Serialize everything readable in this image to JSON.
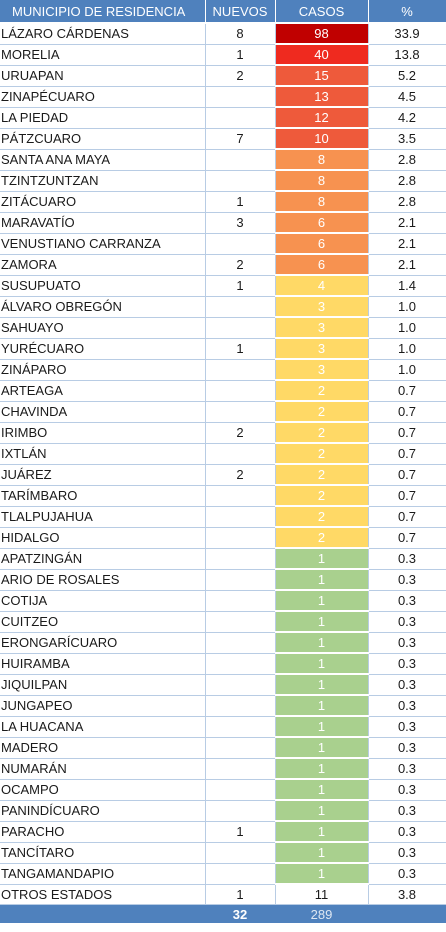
{
  "headers": {
    "municipio": "MUNICIPIO DE RESIDENCIA",
    "nuevos": "NUEVOS",
    "casos": "CASOS",
    "pct": "%"
  },
  "colors": {
    "header": "#4f81bd",
    "tier_98": "#c00000",
    "tier_40": "#ef2a1f",
    "tier_10_15": "#ee5a3b",
    "tier_6_8": "#f79250",
    "tier_2_4": "#ffd966",
    "tier_1": "#a9d08e"
  },
  "rows": [
    {
      "municipio": "LÁZARO CÁRDENAS",
      "nuevos": "8",
      "casos": "98",
      "pct": "33.9",
      "color": "#c00000"
    },
    {
      "municipio": "MORELIA",
      "nuevos": "1",
      "casos": "40",
      "pct": "13.8",
      "color": "#ef2a1f"
    },
    {
      "municipio": "URUAPAN",
      "nuevos": "2",
      "casos": "15",
      "pct": "5.2",
      "color": "#ee5a3b"
    },
    {
      "municipio": "ZINAPÉCUARO",
      "nuevos": "",
      "casos": "13",
      "pct": "4.5",
      "color": "#ee5a3b"
    },
    {
      "municipio": "LA PIEDAD",
      "nuevos": "",
      "casos": "12",
      "pct": "4.2",
      "color": "#ee5a3b"
    },
    {
      "municipio": "PÁTZCUARO",
      "nuevos": "7",
      "casos": "10",
      "pct": "3.5",
      "color": "#ee5a3b"
    },
    {
      "municipio": "SANTA ANA MAYA",
      "nuevos": "",
      "casos": "8",
      "pct": "2.8",
      "color": "#f79250"
    },
    {
      "municipio": "TZINTZUNTZAN",
      "nuevos": "",
      "casos": "8",
      "pct": "2.8",
      "color": "#f79250"
    },
    {
      "municipio": "ZITÁCUARO",
      "nuevos": "1",
      "casos": "8",
      "pct": "2.8",
      "color": "#f79250"
    },
    {
      "municipio": "MARAVATÍO",
      "nuevos": "3",
      "casos": "6",
      "pct": "2.1",
      "color": "#f79250"
    },
    {
      "municipio": "VENUSTIANO CARRANZA",
      "nuevos": "",
      "casos": "6",
      "pct": "2.1",
      "color": "#f79250"
    },
    {
      "municipio": "ZAMORA",
      "nuevos": "2",
      "casos": "6",
      "pct": "2.1",
      "color": "#f79250"
    },
    {
      "municipio": "SUSUPUATO",
      "nuevos": "1",
      "casos": "4",
      "pct": "1.4",
      "color": "#ffd966"
    },
    {
      "municipio": "ÁLVARO OBREGÓN",
      "nuevos": "",
      "casos": "3",
      "pct": "1.0",
      "color": "#ffd966"
    },
    {
      "municipio": "SAHUAYO",
      "nuevos": "",
      "casos": "3",
      "pct": "1.0",
      "color": "#ffd966"
    },
    {
      "municipio": "YURÉCUARO",
      "nuevos": "1",
      "casos": "3",
      "pct": "1.0",
      "color": "#ffd966"
    },
    {
      "municipio": "ZINÁPARO",
      "nuevos": "",
      "casos": "3",
      "pct": "1.0",
      "color": "#ffd966"
    },
    {
      "municipio": "ARTEAGA",
      "nuevos": "",
      "casos": "2",
      "pct": "0.7",
      "color": "#ffd966"
    },
    {
      "municipio": "CHAVINDA",
      "nuevos": "",
      "casos": "2",
      "pct": "0.7",
      "color": "#ffd966"
    },
    {
      "municipio": "IRIMBO",
      "nuevos": "2",
      "casos": "2",
      "pct": "0.7",
      "color": "#ffd966"
    },
    {
      "municipio": "IXTLÁN",
      "nuevos": "",
      "casos": "2",
      "pct": "0.7",
      "color": "#ffd966"
    },
    {
      "municipio": "JUÁREZ",
      "nuevos": "2",
      "casos": "2",
      "pct": "0.7",
      "color": "#ffd966"
    },
    {
      "municipio": "TARÍMBARO",
      "nuevos": "",
      "casos": "2",
      "pct": "0.7",
      "color": "#ffd966"
    },
    {
      "municipio": "TLALPUJAHUA",
      "nuevos": "",
      "casos": "2",
      "pct": "0.7",
      "color": "#ffd966"
    },
    {
      "municipio": "HIDALGO",
      "nuevos": "",
      "casos": "2",
      "pct": "0.7",
      "color": "#ffd966"
    },
    {
      "municipio": "APATZINGÁN",
      "nuevos": "",
      "casos": "1",
      "pct": "0.3",
      "color": "#a9d08e"
    },
    {
      "municipio": "ARIO DE ROSALES",
      "nuevos": "",
      "casos": "1",
      "pct": "0.3",
      "color": "#a9d08e"
    },
    {
      "municipio": "COTIJA",
      "nuevos": "",
      "casos": "1",
      "pct": "0.3",
      "color": "#a9d08e"
    },
    {
      "municipio": "CUITZEO",
      "nuevos": "",
      "casos": "1",
      "pct": "0.3",
      "color": "#a9d08e"
    },
    {
      "municipio": "ERONGARÍCUARO",
      "nuevos": "",
      "casos": "1",
      "pct": "0.3",
      "color": "#a9d08e"
    },
    {
      "municipio": "HUIRAMBA",
      "nuevos": "",
      "casos": "1",
      "pct": "0.3",
      "color": "#a9d08e"
    },
    {
      "municipio": "JIQUILPAN",
      "nuevos": "",
      "casos": "1",
      "pct": "0.3",
      "color": "#a9d08e"
    },
    {
      "municipio": "JUNGAPEO",
      "nuevos": "",
      "casos": "1",
      "pct": "0.3",
      "color": "#a9d08e"
    },
    {
      "municipio": "LA HUACANA",
      "nuevos": "",
      "casos": "1",
      "pct": "0.3",
      "color": "#a9d08e"
    },
    {
      "municipio": "MADERO",
      "nuevos": "",
      "casos": "1",
      "pct": "0.3",
      "color": "#a9d08e"
    },
    {
      "municipio": "NUMARÁN",
      "nuevos": "",
      "casos": "1",
      "pct": "0.3",
      "color": "#a9d08e"
    },
    {
      "municipio": "OCAMPO",
      "nuevos": "",
      "casos": "1",
      "pct": "0.3",
      "color": "#a9d08e"
    },
    {
      "municipio": "PANINDÍCUARO",
      "nuevos": "",
      "casos": "1",
      "pct": "0.3",
      "color": "#a9d08e"
    },
    {
      "municipio": "PARACHO",
      "nuevos": "1",
      "casos": "1",
      "pct": "0.3",
      "color": "#a9d08e"
    },
    {
      "municipio": "TANCÍTARO",
      "nuevos": "",
      "casos": "1",
      "pct": "0.3",
      "color": "#a9d08e"
    },
    {
      "municipio": "TANGAMANDAPIO",
      "nuevos": "",
      "casos": "1",
      "pct": "0.3",
      "color": "#a9d08e"
    },
    {
      "municipio": "OTROS ESTADOS",
      "nuevos": "1",
      "casos": "11",
      "pct": "3.8",
      "color": ""
    }
  ],
  "totals": {
    "nuevos": "32",
    "casos": "289"
  }
}
